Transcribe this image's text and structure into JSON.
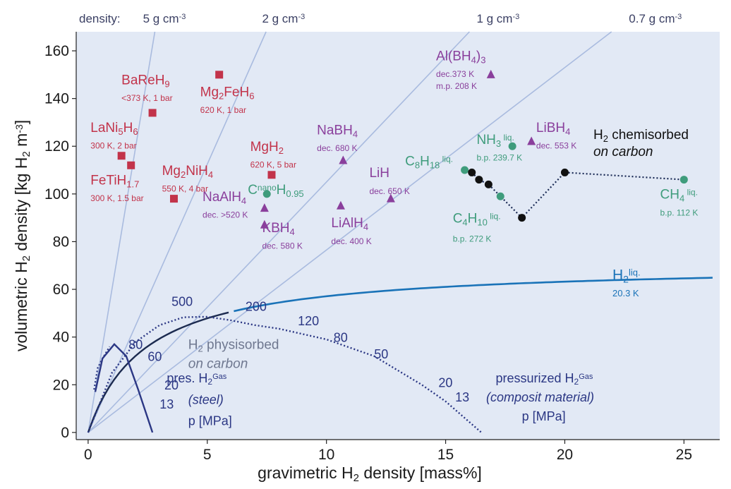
{
  "chart_data": {
    "type": "scatter",
    "xlabel": "gravimetric H2 density [mass%]",
    "ylabel": "volumetric H2 density [kg H2 m-3]",
    "xlim": [
      -0.5,
      26.5
    ],
    "ylim": [
      -3,
      168
    ],
    "x_ticks": [
      0,
      5,
      10,
      15,
      20,
      25
    ],
    "y_ticks": [
      0,
      20,
      40,
      60,
      80,
      100,
      120,
      140,
      160
    ],
    "grid": false,
    "colors": {
      "background": "#e2e9f5",
      "metal_hydride": "#c2334a",
      "complex_hydride": "#8a3f9c",
      "hydrocarbon": "#3f9c7c",
      "chemisorbed": "#111111",
      "liquid_h2": "#1a73b8",
      "density_line": "#a9bbdf",
      "pressure_curve": "#2b3784"
    },
    "density_lines": {
      "prefix": "density:",
      "items": [
        {
          "label": "5 g cm-3",
          "text": "5 g cm",
          "sup": "-3",
          "slope": 60,
          "label_x": 3.2
        },
        {
          "label": "2 g cm-3",
          "text": "2 g cm",
          "sup": "-3",
          "slope": 22.5,
          "label_x": 8.2
        },
        {
          "label": "1 g cm-3",
          "text": "1 g cm",
          "sup": "-3",
          "slope": 10.5,
          "label_x": 17.2
        },
        {
          "label": "0.7 g cm-3",
          "text": "0.7 g cm",
          "sup": "-3",
          "slope": 7.65,
          "label_x": 23.8
        }
      ]
    },
    "metal_hydrides": [
      {
        "name": "BaReH9",
        "parts": [
          [
            "BaReH",
            ""
          ],
          [
            "9",
            "sub"
          ]
        ],
        "condition": "<373 K, 1 bar",
        "x": 2.7,
        "y": 134,
        "label_x": 1.4,
        "label_y": 146,
        "cond_y": 139
      },
      {
        "name": "Mg2FeH6",
        "parts": [
          [
            "Mg",
            ""
          ],
          [
            "2",
            "sub"
          ],
          [
            "FeH",
            ""
          ],
          [
            "6",
            "sub"
          ]
        ],
        "condition": "620 K, 1 bar",
        "x": 5.5,
        "y": 150,
        "label_x": 4.7,
        "label_y": 141,
        "cond_y": 134
      },
      {
        "name": "LaNi5H6",
        "parts": [
          [
            "LaNi",
            ""
          ],
          [
            "5",
            "sub"
          ],
          [
            "H",
            ""
          ],
          [
            "6",
            "sub"
          ]
        ],
        "condition": "300 K, 2 bar",
        "x": 1.4,
        "y": 116,
        "label_x": 0.1,
        "label_y": 126,
        "cond_y": 119
      },
      {
        "name": "FeTiH1.7",
        "parts": [
          [
            "FeTiH",
            ""
          ],
          [
            "1.7",
            "sub"
          ]
        ],
        "condition": "300 K, 1.5 bar",
        "x": 1.8,
        "y": 112,
        "label_x": 0.1,
        "label_y": 104,
        "cond_y": 97
      },
      {
        "name": "Mg2NiH4",
        "parts": [
          [
            "Mg",
            ""
          ],
          [
            "2",
            "sub"
          ],
          [
            "NiH",
            ""
          ],
          [
            "4",
            "sub"
          ]
        ],
        "condition": "550 K, 4 bar",
        "x": 3.6,
        "y": 98,
        "label_x": 3.1,
        "label_y": 108,
        "cond_y": 101
      },
      {
        "name": "MgH2",
        "parts": [
          [
            "MgH",
            ""
          ],
          [
            "2",
            "sub"
          ]
        ],
        "condition": "620 K, 5 bar",
        "x": 7.7,
        "y": 108,
        "label_x": 6.8,
        "label_y": 118,
        "cond_y": 111
      }
    ],
    "complex_hydrides": [
      {
        "name": "Al(BH4)3",
        "parts": [
          [
            "Al(BH",
            ""
          ],
          [
            "4",
            "sub"
          ],
          [
            ")",
            ""
          ],
          [
            "3",
            "sub"
          ]
        ],
        "condition": "dec.373 K",
        "condition2": "m.p. 208 K",
        "x": 16.9,
        "y": 150,
        "label_x": 14.6,
        "label_y": 156,
        "cond_y": 149,
        "cond2_y": 144
      },
      {
        "name": "NaBH4",
        "parts": [
          [
            "NaBH",
            ""
          ],
          [
            "4",
            "sub"
          ]
        ],
        "condition": "dec. 680 K",
        "x": 10.7,
        "y": 114,
        "label_x": 9.6,
        "label_y": 125,
        "cond_y": 118
      },
      {
        "name": "LiBH4",
        "parts": [
          [
            "LiBH",
            ""
          ],
          [
            "4",
            "sub"
          ]
        ],
        "condition": "dec. 553 K",
        "x": 18.6,
        "y": 122,
        "label_x": 18.8,
        "label_y": 126,
        "cond_y": 119
      },
      {
        "name": "LiH",
        "parts": [
          [
            "LiH",
            ""
          ]
        ],
        "condition": "dec. 650 K",
        "x": 12.7,
        "y": 98,
        "label_x": 11.8,
        "label_y": 107,
        "cond_y": 100
      },
      {
        "name": "NaAlH4",
        "parts": [
          [
            "NaAlH",
            ""
          ],
          [
            "4",
            "sub"
          ]
        ],
        "condition": "dec. >520 K",
        "x": 7.4,
        "y": 94,
        "label_x": 4.8,
        "label_y": 97,
        "cond_y": 90
      },
      {
        "name": "KBH4",
        "parts": [
          [
            "KBH",
            ""
          ],
          [
            "4",
            "sub"
          ]
        ],
        "condition": "dec. 580 K",
        "x": 7.4,
        "y": 87,
        "label_x": 7.3,
        "label_y": 84,
        "cond_y": 77
      },
      {
        "name": "LiAlH4",
        "parts": [
          [
            "LiAlH",
            ""
          ],
          [
            "4",
            "sub"
          ]
        ],
        "condition": "dec. 400 K",
        "x": 10.6,
        "y": 95,
        "label_x": 10.2,
        "label_y": 86,
        "cond_y": 79
      }
    ],
    "hydrocarbons": [
      {
        "name": "Cnano H0.95",
        "parts": [
          [
            "C",
            ""
          ],
          [
            "nano",
            "sup"
          ],
          [
            "H",
            ""
          ],
          [
            "0.95",
            "sub"
          ]
        ],
        "condition": "",
        "x": 7.5,
        "y": 100,
        "label_x": 6.7,
        "label_y": 100,
        "cond_y": 0
      },
      {
        "name": "C8H18 liq.",
        "parts": [
          [
            "C",
            ""
          ],
          [
            "8",
            "sub"
          ],
          [
            "H",
            ""
          ],
          [
            "18",
            "sub"
          ],
          [
            " liq.",
            "sup"
          ]
        ],
        "condition": "",
        "x": 15.8,
        "y": 110,
        "label_x": 13.3,
        "label_y": 112,
        "cond_y": 0
      },
      {
        "name": "NH3 liq.",
        "parts": [
          [
            "NH",
            ""
          ],
          [
            "3",
            "sub"
          ],
          [
            " liq.",
            "sup"
          ]
        ],
        "condition": "b.p. 239.7 K",
        "x": 17.8,
        "y": 120,
        "label_x": 16.3,
        "label_y": 121,
        "cond_y": 114
      },
      {
        "name": "C4H10 liq.",
        "parts": [
          [
            "C",
            ""
          ],
          [
            "4",
            "sub"
          ],
          [
            "H",
            ""
          ],
          [
            "10",
            "sub"
          ],
          [
            " liq.",
            "sup"
          ]
        ],
        "condition": "b.p. 272 K",
        "x": 17.3,
        "y": 99,
        "label_x": 15.3,
        "label_y": 88,
        "cond_y": 80
      },
      {
        "name": "CH4 liq.",
        "parts": [
          [
            "CH",
            ""
          ],
          [
            "4",
            "sub"
          ],
          [
            " liq.",
            "sup"
          ]
        ],
        "condition": "b.p. 112 K",
        "x": 25.0,
        "y": 106,
        "label_x": 24.0,
        "label_y": 98,
        "cond_y": 91
      }
    ],
    "chemisorbed": {
      "parts": [
        [
          "H",
          ""
        ],
        [
          "2",
          "sub"
        ],
        [
          " chemisorbed",
          ""
        ]
      ],
      "sub_label": "on carbon",
      "label_x": 21.2,
      "label_y": 123,
      "sub_y": 116,
      "points": [
        {
          "x": 16.1,
          "y": 109
        },
        {
          "x": 16.4,
          "y": 106
        },
        {
          "x": 16.8,
          "y": 104
        },
        {
          "x": 18.2,
          "y": 90
        },
        {
          "x": 20.0,
          "y": 109
        }
      ],
      "dotted_to": {
        "x": 25.0,
        "y": 106
      }
    },
    "liquid_h2": {
      "parts": [
        [
          "H",
          ""
        ],
        [
          "2",
          "sub"
        ],
        [
          "liq.",
          "sup"
        ]
      ],
      "condition": "20.3 K",
      "label_x": 22.0,
      "label_y": 64,
      "cond_y": 57,
      "asymptote": 70.8,
      "half": 2.4,
      "curve": [
        [
          0,
          0
        ],
        [
          0.5,
          12
        ],
        [
          1,
          21
        ],
        [
          2,
          31
        ],
        [
          3,
          38
        ],
        [
          5,
          46
        ],
        [
          7,
          51
        ],
        [
          10,
          55
        ],
        [
          15,
          60
        ],
        [
          20,
          62.5
        ],
        [
          26.2,
          65.3
        ]
      ]
    },
    "physisorbed": {
      "parts": [
        [
          "H",
          ""
        ],
        [
          "2",
          "sub"
        ],
        [
          " physisorbed",
          ""
        ]
      ],
      "sub_label": "on carbon",
      "label_x": 4.2,
      "label_y": 35,
      "sub_y": 27,
      "steel_curve": [
        [
          0.3,
          17
        ],
        [
          0.6,
          31
        ],
        [
          1.1,
          37
        ],
        [
          1.6,
          32
        ],
        [
          2.1,
          18
        ],
        [
          2.7,
          0
        ]
      ],
      "steel_dotted": [
        [
          0.25,
          18
        ],
        [
          0.4,
          27
        ],
        [
          0.6,
          31
        ],
        [
          0.9,
          36
        ]
      ]
    },
    "steel_vessel": {
      "line1_parts": [
        [
          "pres. H",
          ""
        ],
        [
          "2",
          "sub"
        ],
        [
          "Gas",
          "sup"
        ]
      ],
      "line2": "(steel)",
      "line3": "p [MPa]",
      "label_x": 3.3,
      "label_y": 21,
      "line2_y": 12,
      "line3_y": 3,
      "curve": [
        [
          0,
          0
        ],
        [
          1,
          25
        ],
        [
          2,
          38
        ],
        [
          3,
          45
        ],
        [
          4,
          48.3
        ],
        [
          5,
          48.5
        ],
        [
          6,
          47
        ],
        [
          7,
          45
        ],
        [
          8,
          43.5
        ],
        [
          10,
          39
        ],
        [
          12,
          32
        ],
        [
          14,
          20
        ],
        [
          15,
          13
        ],
        [
          16.5,
          0
        ]
      ],
      "pressure_labels": [
        {
          "text": "80",
          "x": 1.7,
          "y": 35
        },
        {
          "text": "60",
          "x": 2.5,
          "y": 30
        },
        {
          "text": "20",
          "x": 3.2,
          "y": 18
        },
        {
          "text": "13",
          "x": 3.0,
          "y": 10
        }
      ]
    },
    "composite_vessel": {
      "line1_parts": [
        [
          "pressurized H",
          ""
        ],
        [
          "2",
          "sub"
        ],
        [
          "Gas",
          "sup"
        ]
      ],
      "line2": "(composit material)",
      "line3": "p [MPa]",
      "label_x": 17.1,
      "label_y": 21,
      "line2_y": 13,
      "line3_y": 5,
      "pressure_labels": [
        {
          "text": "500",
          "x": 3.5,
          "y": 53
        },
        {
          "text": "200",
          "x": 6.6,
          "y": 51
        },
        {
          "text": "120",
          "x": 8.8,
          "y": 45
        },
        {
          "text": "80",
          "x": 10.3,
          "y": 38
        },
        {
          "text": "50",
          "x": 12.0,
          "y": 31
        },
        {
          "text": "20",
          "x": 14.7,
          "y": 19
        },
        {
          "text": "13",
          "x": 15.4,
          "y": 13
        }
      ]
    }
  }
}
